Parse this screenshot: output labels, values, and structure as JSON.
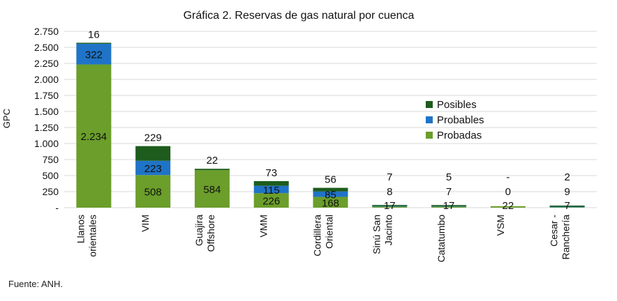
{
  "chart_data": {
    "type": "bar",
    "stacked": true,
    "title": "Gráfica 2. Reservas de gas natural por cuenca",
    "ylabel": "GPC",
    "ylim": [
      0,
      2750
    ],
    "yticks": [
      0,
      250,
      500,
      750,
      1000,
      1250,
      1500,
      1750,
      2000,
      2250,
      2500,
      2750
    ],
    "ytick_labels": [
      "-",
      "250",
      "500",
      "750",
      "1.000",
      "1.250",
      "1.500",
      "1.750",
      "2.000",
      "2.250",
      "2.500",
      "2.750"
    ],
    "grid": true,
    "legend_position": "right",
    "categories": [
      [
        "Llanos",
        "orientales"
      ],
      [
        "VIM"
      ],
      [
        "Guajira",
        "Offshore"
      ],
      [
        "VMM"
      ],
      [
        "Cordillera",
        "Oriental"
      ],
      [
        "Sinú San",
        "Jacinto"
      ],
      [
        "Catatumbo"
      ],
      [
        "VSM"
      ],
      [
        "Cesar -",
        "Ranchería"
      ]
    ],
    "series": [
      {
        "name": "Probadas",
        "color": "#6b9e2a",
        "values": [
          2234,
          508,
          584,
          226,
          168,
          17,
          17,
          22,
          7
        ],
        "labels": [
          "2.234",
          "508",
          "584",
          "226",
          "168",
          "17",
          "17",
          "22",
          "7"
        ]
      },
      {
        "name": "Probables",
        "color": "#1f74c8",
        "values": [
          322,
          223,
          0,
          115,
          85,
          8,
          7,
          0,
          9
        ],
        "labels": [
          "322",
          "223",
          "",
          "115",
          "85",
          "8",
          "7",
          "0",
          "9"
        ]
      },
      {
        "name": "Posibles",
        "color": "#1d5c1d",
        "values": [
          16,
          229,
          22,
          73,
          56,
          7,
          5,
          0,
          2
        ],
        "labels": [
          "16",
          "229",
          "22",
          "73",
          "56",
          "7",
          "5",
          "-",
          "2"
        ]
      }
    ],
    "legend_order": [
      "Posibles",
      "Probables",
      "Probadas"
    ]
  },
  "source": "Fuente: ANH."
}
